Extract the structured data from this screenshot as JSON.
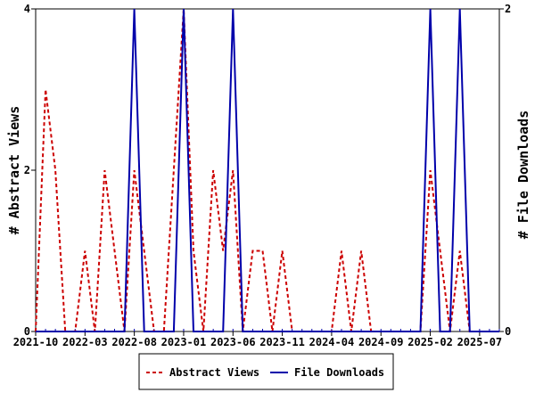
{
  "chart_data": {
    "type": "line",
    "x": [
      "2021-10",
      "2021-11",
      "2021-12",
      "2022-01",
      "2022-02",
      "2022-03",
      "2022-04",
      "2022-05",
      "2022-06",
      "2022-07",
      "2022-08",
      "2022-09",
      "2022-10",
      "2022-11",
      "2022-12",
      "2023-01",
      "2023-02",
      "2023-03",
      "2023-04",
      "2023-05",
      "2023-06",
      "2023-07",
      "2023-08",
      "2023-09",
      "2023-10",
      "2023-11",
      "2023-12",
      "2024-01",
      "2024-02",
      "2024-03",
      "2024-04",
      "2024-05",
      "2024-06",
      "2024-07",
      "2024-08",
      "2024-09",
      "2024-10",
      "2024-11",
      "2024-12",
      "2025-01",
      "2025-02",
      "2025-03",
      "2025-04",
      "2025-05",
      "2025-06",
      "2025-07",
      "2025-08",
      "2025-09"
    ],
    "x_tick_labels": [
      "2021-10",
      "2022-03",
      "2022-08",
      "2023-01",
      "2023-06",
      "2023-11",
      "2024-04",
      "2024-09",
      "2025-02",
      "2025-07"
    ],
    "x_tick_every": 5,
    "series": [
      {
        "name": "Abstract Views",
        "axis": "left",
        "color": "#cc0000",
        "dash": true,
        "values": [
          0,
          3,
          2,
          0,
          0,
          1,
          0,
          2,
          1,
          0,
          2,
          1,
          0,
          0,
          2,
          4,
          1,
          0,
          2,
          1,
          2,
          0,
          1,
          1,
          0,
          1,
          0,
          0,
          0,
          0,
          0,
          1,
          0,
          1,
          0,
          0,
          0,
          0,
          0,
          0,
          2,
          1,
          0,
          1,
          0,
          0,
          0,
          0
        ]
      },
      {
        "name": "File Downloads",
        "axis": "right",
        "color": "#0000aa",
        "dash": false,
        "values": [
          0,
          0,
          0,
          0,
          0,
          0,
          0,
          0,
          0,
          0,
          2,
          0,
          0,
          0,
          0,
          2,
          0,
          0,
          0,
          0,
          2,
          0,
          0,
          0,
          0,
          0,
          0,
          0,
          0,
          0,
          0,
          0,
          0,
          0,
          0,
          0,
          0,
          0,
          0,
          0,
          2,
          0,
          0,
          2,
          0,
          0,
          0,
          0
        ]
      }
    ],
    "y_left": {
      "label": "# Abstract Views",
      "min": 0,
      "max": 4,
      "ticks": [
        0,
        2,
        4
      ]
    },
    "y_right": {
      "label": "# File Downloads",
      "min": 0,
      "max": 2,
      "ticks": [
        0,
        2
      ]
    },
    "grid": false,
    "legend": "bottom"
  }
}
